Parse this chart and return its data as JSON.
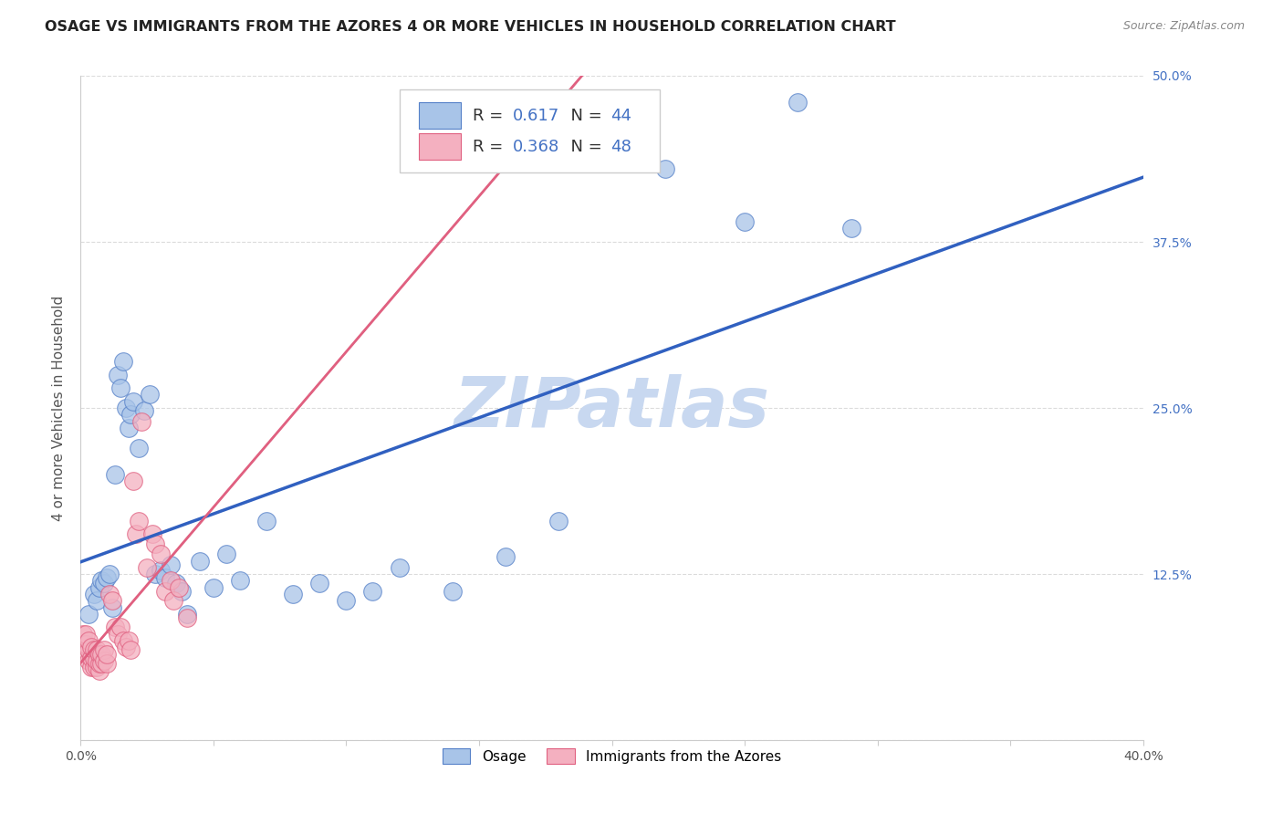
{
  "title": "OSAGE VS IMMIGRANTS FROM THE AZORES 4 OR MORE VEHICLES IN HOUSEHOLD CORRELATION CHART",
  "source": "Source: ZipAtlas.com",
  "ylabel": "4 or more Vehicles in Household",
  "xlim": [
    0.0,
    0.4
  ],
  "ylim": [
    0.0,
    0.5
  ],
  "xticks": [
    0.0,
    0.05,
    0.1,
    0.15,
    0.2,
    0.25,
    0.3,
    0.35,
    0.4
  ],
  "yticks": [
    0.0,
    0.125,
    0.25,
    0.375,
    0.5
  ],
  "ytick_labels": [
    "",
    "12.5%",
    "25.0%",
    "37.5%",
    "50.0%"
  ],
  "xtick_labels": [
    "0.0%",
    "",
    "",
    "",
    "",
    "",
    "",
    "",
    "40.0%"
  ],
  "legend_blue_r": "0.617",
  "legend_blue_n": "44",
  "legend_pink_r": "0.368",
  "legend_pink_n": "48",
  "legend_label_blue": "Osage",
  "legend_label_pink": "Immigrants from the Azores",
  "blue_scatter_color": "#a8c4e8",
  "blue_edge_color": "#5580c8",
  "pink_scatter_color": "#f4b0c0",
  "pink_edge_color": "#e06080",
  "blue_line_color": "#3060c0",
  "pink_line_color": "#e06080",
  "pink_dash_color": "#e8a0b0",
  "watermark": "ZIPatlas",
  "watermark_color": "#c8d8f0",
  "grid_color": "#cccccc",
  "title_color": "#222222",
  "source_color": "#888888",
  "tick_color": "#555555",
  "rn_color": "#4472c4",
  "blue_scatter_x": [
    0.003,
    0.005,
    0.006,
    0.007,
    0.008,
    0.009,
    0.01,
    0.011,
    0.012,
    0.013,
    0.014,
    0.015,
    0.016,
    0.017,
    0.018,
    0.019,
    0.02,
    0.022,
    0.024,
    0.026,
    0.028,
    0.03,
    0.032,
    0.034,
    0.036,
    0.038,
    0.04,
    0.045,
    0.05,
    0.055,
    0.06,
    0.07,
    0.08,
    0.09,
    0.1,
    0.11,
    0.12,
    0.14,
    0.16,
    0.18,
    0.22,
    0.25,
    0.27,
    0.29
  ],
  "blue_scatter_y": [
    0.095,
    0.11,
    0.105,
    0.115,
    0.12,
    0.118,
    0.122,
    0.125,
    0.1,
    0.2,
    0.275,
    0.265,
    0.285,
    0.25,
    0.235,
    0.245,
    0.255,
    0.22,
    0.248,
    0.26,
    0.125,
    0.128,
    0.122,
    0.132,
    0.118,
    0.112,
    0.095,
    0.135,
    0.115,
    0.14,
    0.12,
    0.165,
    0.11,
    0.118,
    0.105,
    0.112,
    0.13,
    0.112,
    0.138,
    0.165,
    0.43,
    0.39,
    0.48,
    0.385
  ],
  "pink_scatter_x": [
    0.001,
    0.001,
    0.002,
    0.002,
    0.002,
    0.003,
    0.003,
    0.003,
    0.004,
    0.004,
    0.004,
    0.005,
    0.005,
    0.005,
    0.006,
    0.006,
    0.006,
    0.007,
    0.007,
    0.007,
    0.008,
    0.008,
    0.009,
    0.009,
    0.01,
    0.01,
    0.011,
    0.012,
    0.013,
    0.014,
    0.015,
    0.016,
    0.017,
    0.018,
    0.019,
    0.02,
    0.021,
    0.022,
    0.023,
    0.025,
    0.027,
    0.028,
    0.03,
    0.032,
    0.034,
    0.035,
    0.037,
    0.04
  ],
  "pink_scatter_y": [
    0.08,
    0.072,
    0.065,
    0.072,
    0.08,
    0.06,
    0.068,
    0.075,
    0.055,
    0.062,
    0.07,
    0.055,
    0.062,
    0.068,
    0.055,
    0.06,
    0.068,
    0.052,
    0.058,
    0.065,
    0.058,
    0.065,
    0.06,
    0.068,
    0.058,
    0.065,
    0.11,
    0.105,
    0.085,
    0.08,
    0.085,
    0.075,
    0.07,
    0.075,
    0.068,
    0.195,
    0.155,
    0.165,
    0.24,
    0.13,
    0.155,
    0.148,
    0.14,
    0.112,
    0.12,
    0.105,
    0.115,
    0.092
  ],
  "title_fontsize": 11.5,
  "axis_label_fontsize": 11,
  "tick_fontsize": 10,
  "legend_fontsize": 13
}
